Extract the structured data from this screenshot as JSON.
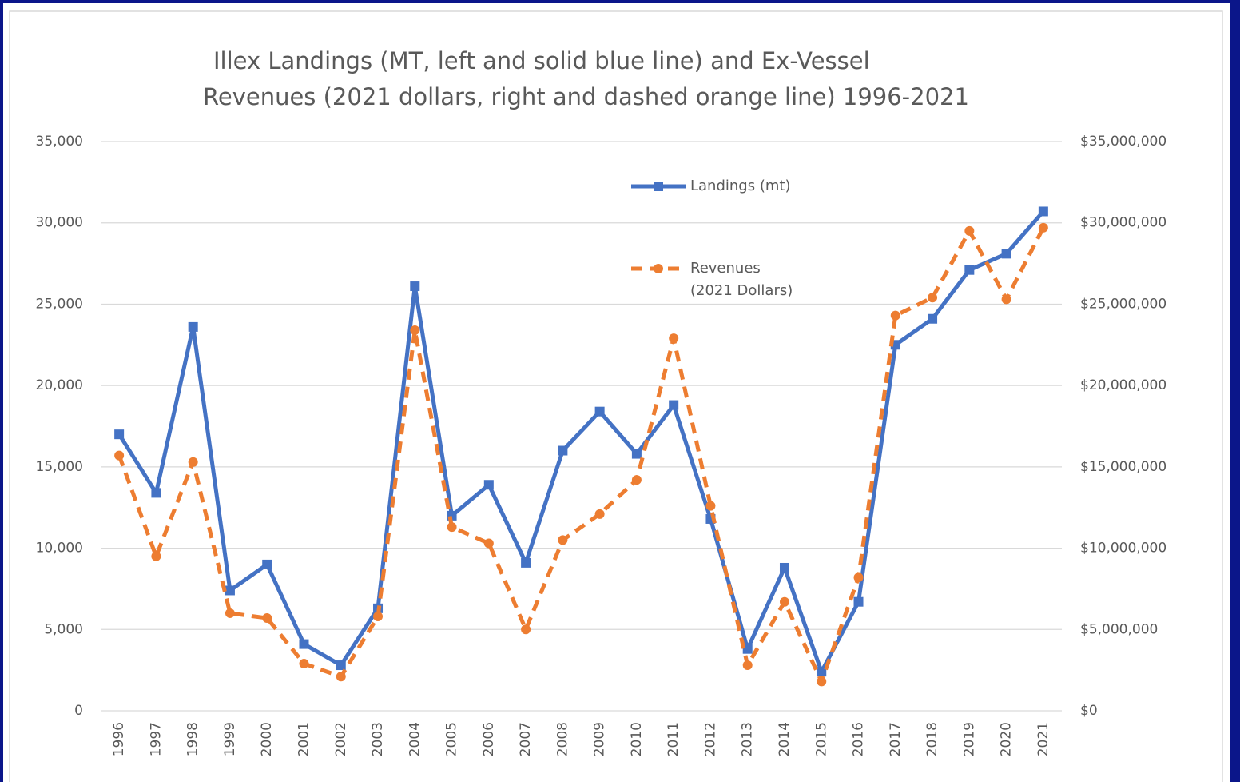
{
  "chart_data": {
    "type": "line",
    "title": [
      "Illex Landings (MT, left and solid blue line) and Ex-Vessel",
      "Revenues (2021 dollars, right and dashed orange line) 1996-2021"
    ],
    "categories": [
      "1996",
      "1997",
      "1998",
      "1999",
      "2000",
      "2001",
      "2002",
      "2003",
      "2004",
      "2005",
      "2006",
      "2007",
      "2008",
      "2009",
      "2010",
      "2011",
      "2012",
      "2013",
      "2014",
      "2015",
      "2016",
      "2017",
      "2018",
      "2019",
      "2020",
      "2021"
    ],
    "series": [
      {
        "name": "Landings (mt)",
        "color": "#4472c4",
        "style": "solid",
        "marker": "square",
        "axis": "y",
        "values": [
          17000,
          13400,
          23600,
          7400,
          9000,
          4100,
          2800,
          6300,
          26100,
          12000,
          13900,
          9100,
          16000,
          18400,
          15800,
          18800,
          11800,
          3800,
          8800,
          2400,
          6700,
          22500,
          24100,
          27100,
          28100,
          30700
        ]
      },
      {
        "name": "Revenues (2021 Dollars)",
        "color": "#ed7d31",
        "style": "dashed",
        "marker": "circle",
        "axis": "y2",
        "values": [
          15700000,
          9500000,
          15300000,
          6000000,
          5700000,
          2900000,
          2100000,
          5800000,
          23400000,
          11300000,
          10300000,
          5000000,
          10500000,
          12100000,
          14200000,
          22900000,
          12600000,
          2800000,
          6700000,
          1800000,
          8200000,
          24300000,
          25400000,
          29500000,
          25300000,
          29700000
        ]
      }
    ],
    "ylim": [
      0,
      35000
    ],
    "yticks": [
      0,
      {
        "value": 5000,
        "label": "5,000"
      },
      {
        "value": 10000,
        "label": "10,000"
      },
      {
        "value": 15000,
        "label": "15,000"
      },
      {
        "value": 20000,
        "label": "20,000"
      },
      {
        "value": 25000,
        "label": "25,000"
      },
      {
        "value": 30000,
        "label": "30,000"
      },
      {
        "value": 35000,
        "label": "35,000"
      }
    ],
    "y2lim": [
      0,
      35000000
    ],
    "y2ticks": [
      {
        "value": 0,
        "label": "$0"
      },
      {
        "value": 5000000,
        "label": "$5,000,000"
      },
      {
        "value": 10000000,
        "label": "$10,000,000"
      },
      {
        "value": 15000000,
        "label": "$15,000,000"
      },
      {
        "value": 20000000,
        "label": "$20,000,000"
      },
      {
        "value": 25000000,
        "label": "$25,000,000"
      },
      {
        "value": 30000000,
        "label": "$30,000,000"
      },
      {
        "value": 35000000,
        "label": "$35,000,000"
      }
    ],
    "grid": true
  }
}
